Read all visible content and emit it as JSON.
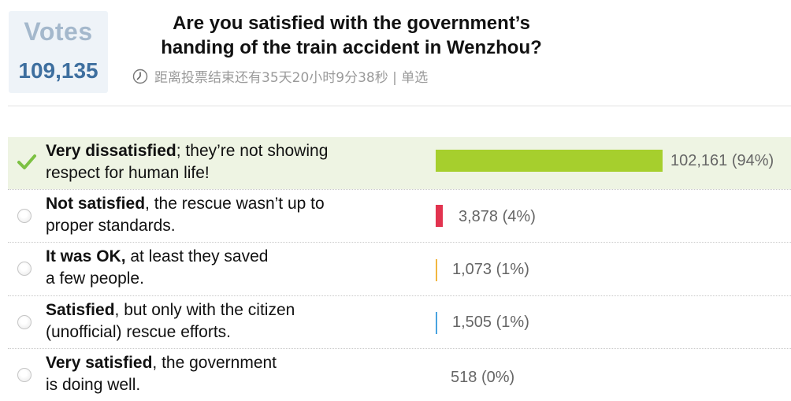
{
  "votes": {
    "label": "Votes",
    "count": "109,135"
  },
  "question": {
    "line1": "Are you satisfied with the government’s",
    "line2": "handing of the train accident in Wenzhou?"
  },
  "meta": {
    "text": "距离投票结束还有35天20小时9分38秒 | 单选",
    "icon": "clock-icon"
  },
  "options": [
    {
      "bold": "Very dissatisfied",
      "rest": "; they’re not showing",
      "line2": "respect for human life!",
      "count": "102,161",
      "percent": "(94%)",
      "share": 0.94,
      "color": "#a6cf2d",
      "selected": true
    },
    {
      "bold": "Not satisfied",
      "rest": ", the rescue wasn’t up to",
      "line2": "proper standards.",
      "count": "3,878",
      "percent": "(4%)",
      "share": 0.04,
      "color": "#e2334f",
      "selected": false
    },
    {
      "bold": "It was OK,",
      "rest": " at least they saved",
      "line2": "a few people.",
      "count": "1,073",
      "percent": "(1%)",
      "share": 0.01,
      "color": "#f2b640",
      "selected": false
    },
    {
      "bold": "Satisfied",
      "rest": ", but only with the citizen",
      "line2": "(unofficial) rescue efforts.",
      "count": "1,505",
      "percent": "(1%)",
      "share": 0.01,
      "color": "#49a3e0",
      "selected": false
    },
    {
      "bold": "Very satisfied",
      "rest": ", the government",
      "line2": "is doing well.",
      "count": "518",
      "percent": "(0%)",
      "share": 0.0,
      "color": "",
      "selected": false
    }
  ]
}
